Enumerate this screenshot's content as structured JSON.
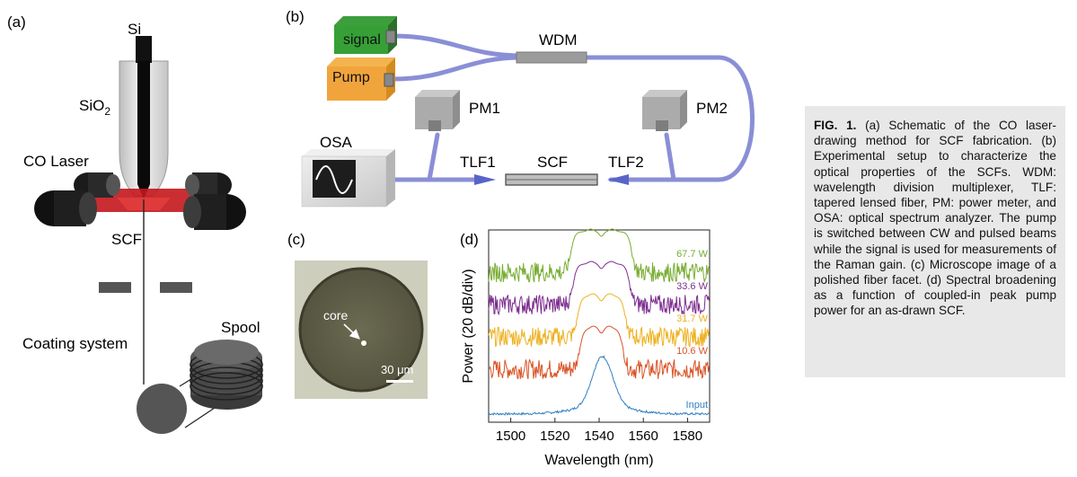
{
  "panel_a": {
    "tag": "(a)",
    "si": "Si",
    "sio2_main": "SiO",
    "sio2_sub": "2",
    "co_laser": "CO Laser",
    "scf": "SCF",
    "spool": "Spool",
    "coating": "Coating system"
  },
  "panel_b": {
    "tag": "(b)",
    "signal": "signal",
    "pump": "Pump",
    "wdm": "WDM",
    "pm1": "PM1",
    "pm2": "PM2",
    "osa": "OSA",
    "tlf1": "TLF1",
    "scf": "SCF",
    "tlf2": "TLF2"
  },
  "panel_c": {
    "tag": "(c)",
    "core": "core",
    "scale": "30 μm"
  },
  "panel_d": {
    "tag": "(d)"
  },
  "chart_data": {
    "type": "line",
    "xlabel": "Wavelength (nm)",
    "ylabel": "Power (20 dB/div)",
    "xlim": [
      1490,
      1590
    ],
    "xticks": [
      1500,
      1520,
      1540,
      1560,
      1580
    ],
    "ticklabels": [
      "1500",
      "1520",
      "1540",
      "1560",
      "1580"
    ],
    "series": [
      {
        "name": "Input",
        "color": "#2f7fc1",
        "offset_div": 0,
        "kind": "input"
      },
      {
        "name": "10.6 W",
        "color": "#d95326",
        "offset_div": 1,
        "kind": "broad",
        "half": 10
      },
      {
        "name": "31.7 W",
        "color": "#eeb120",
        "offset_div": 2,
        "kind": "broad",
        "half": 11
      },
      {
        "name": "33.6 W",
        "color": "#7d2e8e",
        "offset_div": 3,
        "kind": "broad",
        "half": 13
      },
      {
        "name": "67.7 W",
        "color": "#77ac31",
        "offset_div": 4,
        "kind": "broad",
        "half": 14
      }
    ]
  },
  "caption": {
    "label": "FIG. 1.",
    "text": " (a) Schematic of the CO laser-drawing method for SCF fabrication. (b) Experimental setup to characterize the optical properties of the SCFs. WDM: wavelength division multiplexer, TLF: tapered lensed fiber, PM: power meter, and OSA: optical spectrum analyzer. The pump is switched between CW and pulsed beams while the signal is used for measurements of the Raman gain. (c) Microscope image of a polished fiber facet. (d) Spectral broadening as a function of coupled-in peak pump power for an as-drawn SCF."
  }
}
